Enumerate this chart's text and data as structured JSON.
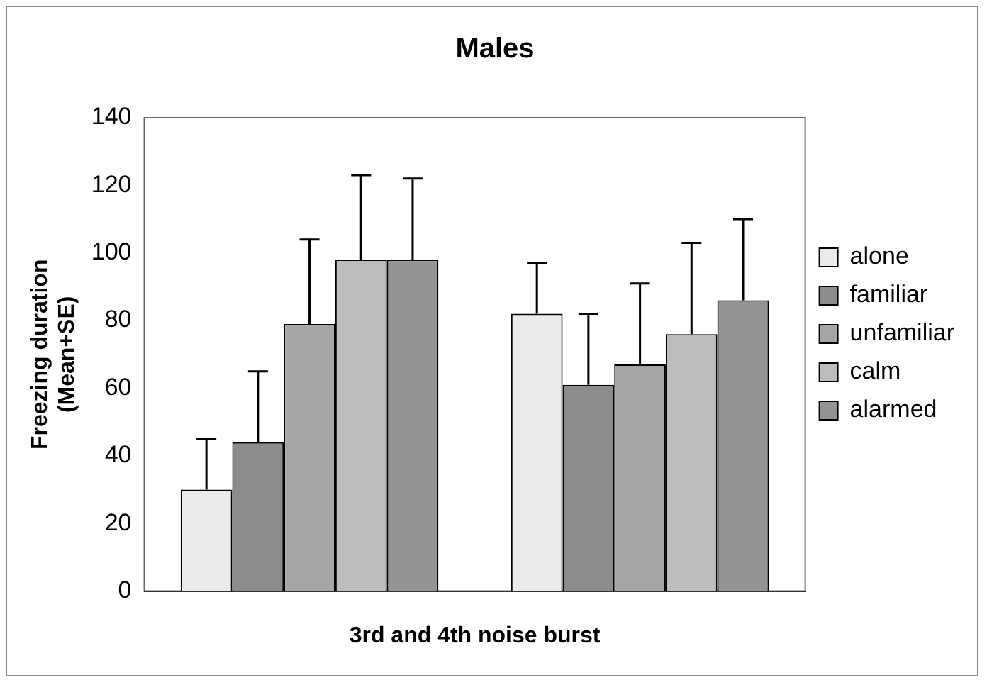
{
  "chart_data": {
    "type": "bar",
    "title": "Males",
    "xlabel": "3rd and 4th noise burst",
    "ylabel": "Freezing duration (Mean+SE)",
    "categories": [
      null,
      null
    ],
    "series": [
      {
        "name": "alone",
        "color": "#ebebeb",
        "values": [
          30,
          82
        ],
        "errors": [
          [
            30,
            45
          ],
          [
            82,
            97
          ]
        ]
      },
      {
        "name": "familiar",
        "color": "#8c8c8c",
        "values": [
          44,
          61
        ],
        "errors": [
          [
            44,
            65
          ],
          [
            61,
            82
          ]
        ]
      },
      {
        "name": "unfamiliar",
        "color": "#a6a6a6",
        "values": [
          79,
          67
        ],
        "errors": [
          [
            79,
            104
          ],
          [
            67,
            91
          ]
        ]
      },
      {
        "name": "calm",
        "color": "#bdbdbd",
        "values": [
          98,
          76
        ],
        "errors": [
          [
            98,
            123
          ],
          [
            76,
            103
          ]
        ]
      },
      {
        "name": "alarmed",
        "color": "#949494",
        "values": [
          98,
          86
        ],
        "errors": [
          [
            98,
            122
          ],
          [
            86,
            110
          ]
        ]
      }
    ],
    "ylim": [
      0,
      140
    ],
    "yticks": [
      0,
      20,
      40,
      60,
      80,
      100,
      120,
      140
    ],
    "grid": false,
    "legend": "right"
  }
}
